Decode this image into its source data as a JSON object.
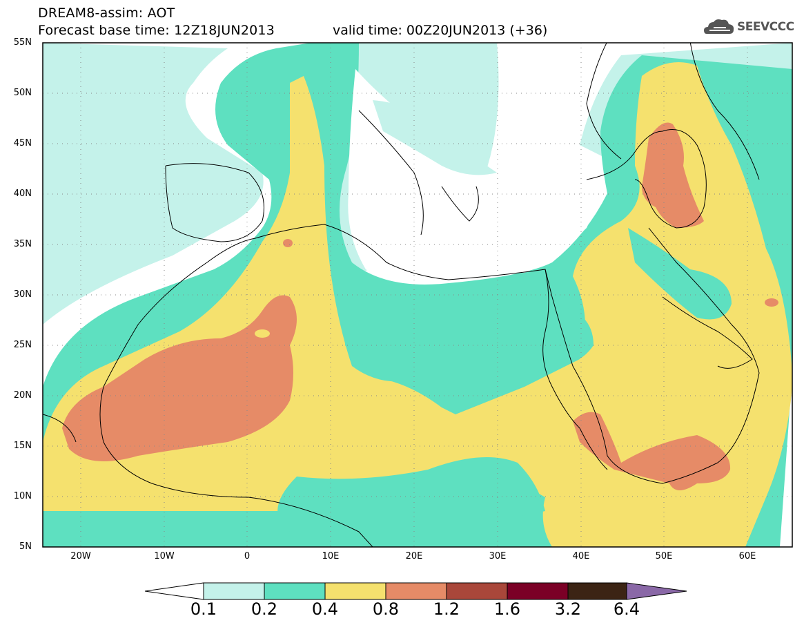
{
  "header": {
    "line1": "DREAM8-assim: AOT",
    "line2": "Forecast base time: 12Z18JUN2013",
    "valid": "valid time: 00Z20JUN2013 (+36)"
  },
  "logo": {
    "text": "SEEVCCC",
    "icon": "cloud-icon",
    "color": "#555555"
  },
  "map": {
    "lon_range": [
      -25,
      65
    ],
    "lat_range": [
      5,
      55
    ],
    "lat_labels": [
      "55N",
      "50N",
      "45N",
      "40N",
      "35N",
      "30N",
      "25N",
      "20N",
      "15N",
      "10N",
      "5N"
    ],
    "lon_labels": [
      "20W",
      "10W",
      "0",
      "10E",
      "20E",
      "30E",
      "40E",
      "50E",
      "60E"
    ],
    "gridlines": "dotted",
    "field": "AOT"
  },
  "colorbar": {
    "levels": [
      "0.1",
      "0.2",
      "0.4",
      "0.8",
      "1.2",
      "1.6",
      "3.2",
      "6.4"
    ],
    "colors": [
      "#ffffff",
      "#c4f2ea",
      "#5ee0c0",
      "#f5e16e",
      "#e68b67",
      "#a9473a",
      "#7b0026",
      "#3c2414",
      "#8a68a7"
    ]
  }
}
